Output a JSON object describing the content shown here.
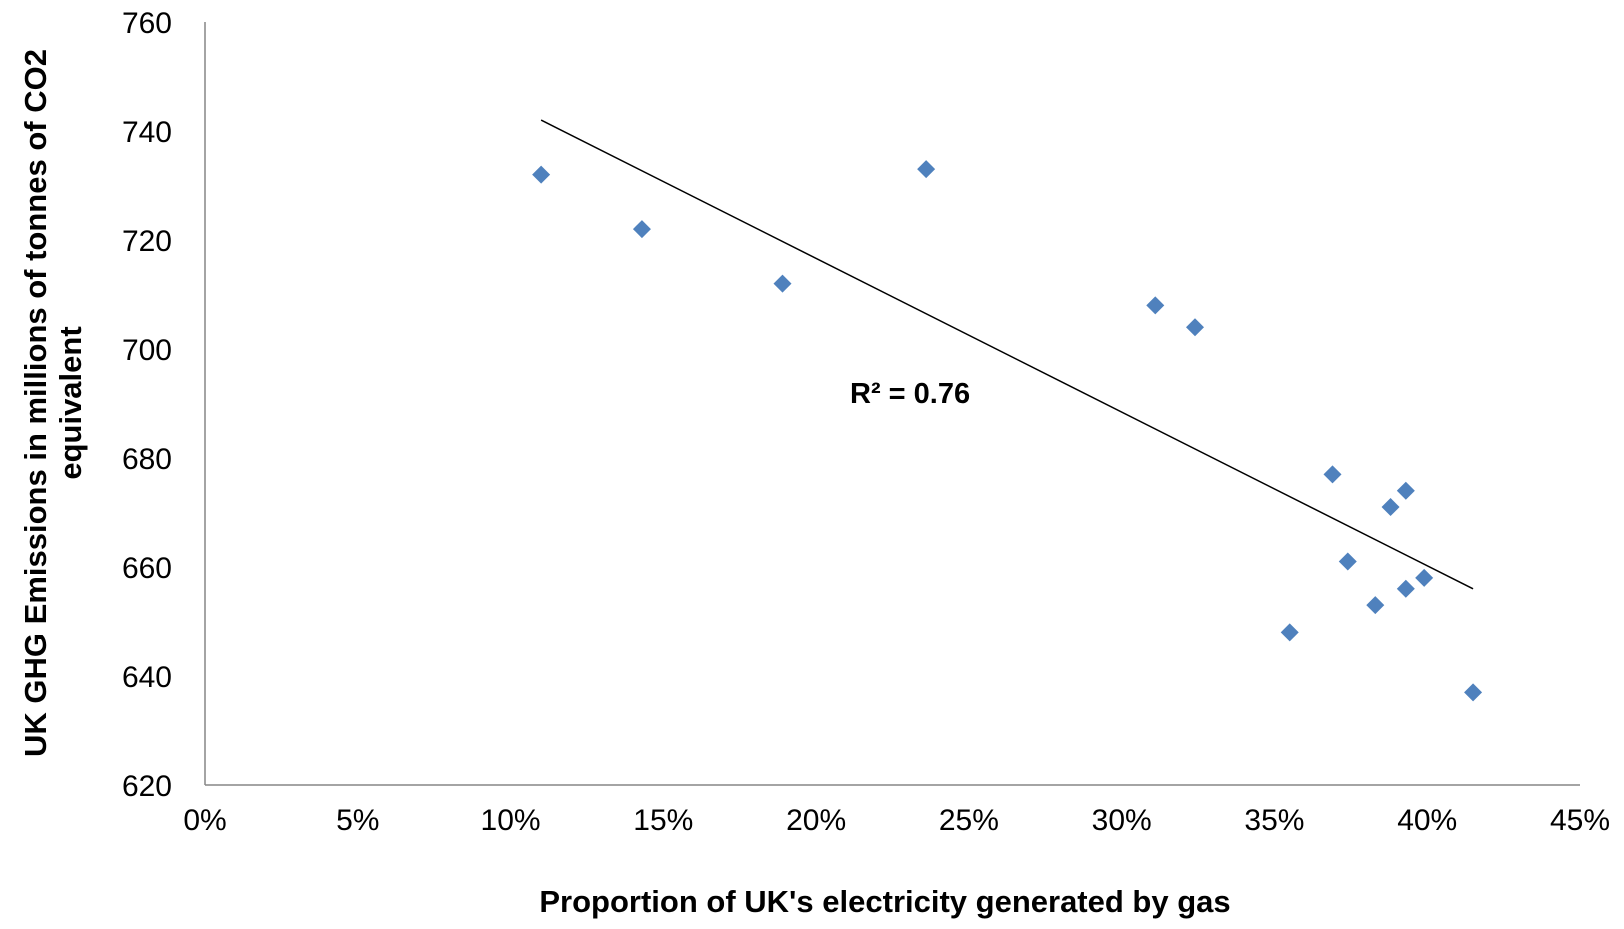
{
  "chart_data": {
    "type": "scatter",
    "title": "",
    "xlabel": "Proportion of UK's electricity generated by gas",
    "ylabel_lines": [
      "UK GHG Emissions in millions of tonnes of CO2",
      "equivalent"
    ],
    "xlim": [
      0,
      45
    ],
    "ylim": [
      620,
      760
    ],
    "x_ticks": [
      0,
      5,
      10,
      15,
      20,
      25,
      30,
      35,
      40,
      45
    ],
    "x_tick_labels": [
      "0%",
      "5%",
      "10%",
      "15%",
      "20%",
      "25%",
      "30%",
      "35%",
      "40%",
      "45%"
    ],
    "y_ticks": [
      620,
      640,
      660,
      680,
      700,
      720,
      740,
      760
    ],
    "y_tick_labels": [
      "620",
      "640",
      "660",
      "680",
      "700",
      "720",
      "740",
      "760"
    ],
    "grid": false,
    "legend": "none",
    "marker_color": "#4F81BD",
    "marker": "diamond",
    "points": [
      {
        "x": 11.0,
        "y": 732
      },
      {
        "x": 14.3,
        "y": 722
      },
      {
        "x": 18.9,
        "y": 712
      },
      {
        "x": 23.6,
        "y": 733
      },
      {
        "x": 31.1,
        "y": 708
      },
      {
        "x": 32.4,
        "y": 704
      },
      {
        "x": 35.5,
        "y": 648
      },
      {
        "x": 36.9,
        "y": 677
      },
      {
        "x": 37.4,
        "y": 661
      },
      {
        "x": 38.3,
        "y": 653
      },
      {
        "x": 38.8,
        "y": 671
      },
      {
        "x": 39.3,
        "y": 674
      },
      {
        "x": 39.3,
        "y": 656
      },
      {
        "x": 39.9,
        "y": 658
      },
      {
        "x": 41.5,
        "y": 637
      }
    ],
    "trendline": {
      "color": "#000000",
      "x": [
        11.0,
        41.5
      ],
      "y": [
        742,
        656
      ]
    },
    "annotation": "R² = 0.76"
  }
}
